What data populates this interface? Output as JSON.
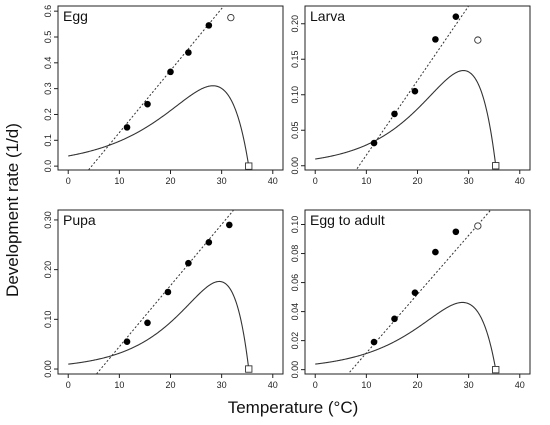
{
  "figure": {
    "xlabel": "Temperature (°C)",
    "ylabel": "Development rate (1/d)"
  },
  "chart_data": [
    {
      "type": "scatter",
      "title": "Egg",
      "xlim": [
        -2,
        42
      ],
      "ylim": [
        -0.015,
        0.62
      ],
      "x_ticks": [
        0,
        10,
        20,
        30,
        40
      ],
      "y_ticks": [
        0.0,
        0.1,
        0.2,
        0.3,
        0.4,
        0.5,
        0.6
      ],
      "y_tick_labels": [
        "0.0",
        "0.1",
        "0.2",
        "0.3",
        "0.4",
        "0.5",
        "0.6"
      ],
      "observed": {
        "x": [
          11.5,
          15.5,
          20,
          23.5,
          27.5
        ],
        "y": [
          0.15,
          0.24,
          0.365,
          0.44,
          0.545
        ]
      },
      "excluded_high": {
        "x": 31.8,
        "y": 0.575
      },
      "upper_limit": {
        "x": 35.3,
        "y": 0.0
      },
      "nonlinear_fit": {
        "T0": 0.04,
        "k": 0.094,
        "Tmax": 35.3,
        "delta": 4.85
      },
      "linear_fit": {
        "slope": 0.024,
        "intercept": -0.11
      }
    },
    {
      "type": "scatter",
      "title": "Larva",
      "xlim": [
        -2,
        42
      ],
      "ylim": [
        -0.006,
        0.225
      ],
      "x_ticks": [
        0,
        10,
        20,
        30,
        40
      ],
      "y_ticks": [
        0.0,
        0.05,
        0.1,
        0.15,
        0.2
      ],
      "y_tick_labels": [
        "0.00",
        "0.05",
        "0.10",
        "0.15",
        "0.20"
      ],
      "observed": {
        "x": [
          11.5,
          15.5,
          19.5,
          23.5,
          27.5
        ],
        "y": [
          0.032,
          0.073,
          0.105,
          0.178,
          0.21
        ]
      },
      "excluded_high": {
        "x": 31.8,
        "y": 0.177
      },
      "upper_limit": {
        "x": 35.3,
        "y": 0.0
      },
      "nonlinear_fit": {
        "T0": 0.01,
        "k": 0.121,
        "Tmax": 35.3,
        "delta": 4.94
      },
      "linear_fit": {
        "slope": 0.0105,
        "intercept": -0.09
      }
    },
    {
      "type": "scatter",
      "title": "Pupa",
      "xlim": [
        -2,
        42
      ],
      "ylim": [
        -0.01,
        0.32
      ],
      "x_ticks": [
        0,
        10,
        20,
        30,
        40
      ],
      "y_ticks": [
        0.0,
        0.1,
        0.2,
        0.3
      ],
      "y_tick_labels": [
        "0.00",
        "0.10",
        "0.20",
        "0.30"
      ],
      "observed": {
        "x": [
          11.5,
          15.5,
          19.5,
          23.5,
          27.5,
          31.5
        ],
        "y": [
          0.055,
          0.093,
          0.155,
          0.213,
          0.255,
          0.29
        ]
      },
      "excluded_high": null,
      "upper_limit": {
        "x": 35.3,
        "y": 0.0
      },
      "nonlinear_fit": {
        "T0": 0.01,
        "k": 0.121,
        "Tmax": 35.3,
        "delta": 4.18
      },
      "linear_fit": {
        "slope": 0.0123,
        "intercept": -0.078
      }
    },
    {
      "type": "scatter",
      "title": "Egg to adult",
      "xlim": [
        -2,
        42
      ],
      "ylim": [
        -0.003,
        0.11
      ],
      "x_ticks": [
        0,
        10,
        20,
        30,
        40
      ],
      "y_ticks": [
        0.0,
        0.02,
        0.04,
        0.06,
        0.08,
        0.1
      ],
      "y_tick_labels": [
        "0.00",
        "0.02",
        "0.04",
        "0.06",
        "0.08",
        "0.10"
      ],
      "observed": {
        "x": [
          11.5,
          15.5,
          19.5,
          23.5,
          27.5
        ],
        "y": [
          0.019,
          0.035,
          0.053,
          0.081,
          0.095
        ]
      },
      "excluded_high": {
        "x": 31.8,
        "y": 0.099
      },
      "upper_limit": {
        "x": 35.3,
        "y": 0.0
      },
      "nonlinear_fit": {
        "T0": 0.004,
        "k": 0.114,
        "Tmax": 35.3,
        "delta": 4.96
      },
      "linear_fit": {
        "slope": 0.00405,
        "intercept": -0.029
      }
    }
  ]
}
